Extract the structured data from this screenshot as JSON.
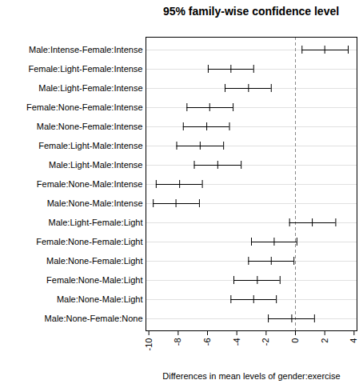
{
  "chart_data": {
    "type": "interval",
    "title": "95% family-wise confidence level",
    "x_label": "Differences in mean levels of gender:exercise",
    "orientation": "horizontal",
    "grid": true,
    "categories": [
      "Male:Intense-Female:Intense",
      "Female:Light-Female:Intense",
      "Male:Light-Female:Intense",
      "Female:None-Female:Intense",
      "Male:None-Female:Intense",
      "Female:Light-Male:Intense",
      "Male:Light-Male:Intense",
      "Female:None-Male:Intense",
      "Male:None-Male:Intense",
      "Male:Light-Female:Light",
      "Female:None-Female:Light",
      "Male:None-Female:Light",
      "Female:None-Male:Light",
      "Male:None-Male:Light",
      "Male:None-Female:None"
    ],
    "values": [
      2.0,
      -4.4,
      -3.2,
      -5.85,
      -6.05,
      -6.5,
      -5.3,
      -7.9,
      -8.15,
      1.15,
      -1.45,
      -1.65,
      -2.6,
      -2.85,
      -0.25
    ],
    "lower": [
      0.45,
      -5.95,
      -4.8,
      -7.4,
      -7.65,
      -8.1,
      -6.9,
      -9.5,
      -9.7,
      -0.4,
      -3.0,
      -3.2,
      -4.2,
      -4.4,
      -1.85
    ],
    "upper": [
      3.6,
      -2.85,
      -1.65,
      -4.25,
      -4.5,
      -4.9,
      -3.7,
      -6.35,
      -6.55,
      2.75,
      0.1,
      -0.1,
      -1.05,
      -1.3,
      1.3
    ],
    "reference_line": 0,
    "color": "#000000",
    "xlim": [
      -10.2,
      4.2
    ],
    "xticks": [
      -10,
      -8,
      -6,
      -4,
      -2,
      0,
      2,
      4
    ]
  }
}
